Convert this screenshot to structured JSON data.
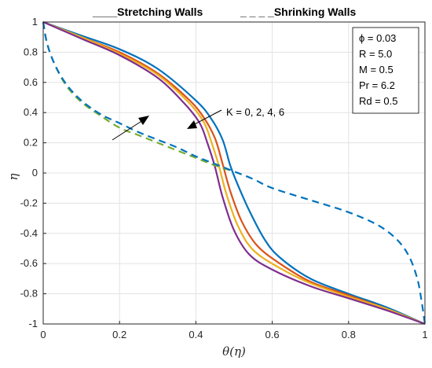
{
  "chart_data": {
    "type": "line",
    "xlabel": "θ(η)",
    "ylabel": "η",
    "xlim": [
      0,
      1
    ],
    "ylim": [
      -1,
      1
    ],
    "xticks": [
      "0",
      "0.2",
      "0.4",
      "0.6",
      "0.8",
      "1"
    ],
    "yticks": [
      "-1",
      "-0.8",
      "-0.6",
      "-0.4",
      "-0.2",
      "0",
      "0.2",
      "0.4",
      "0.6",
      "0.8",
      "1"
    ],
    "grid": true,
    "legend": {
      "placement": "top",
      "stretching_label": "____Stretching Walls",
      "shrinking_label": "_ _ _ _Shrinking Walls"
    },
    "parameters": {
      "placement": "top-right",
      "items": [
        "ϕ = 0.03",
        "R = 5.0",
        "M = 0.5",
        "Pr = 6.2",
        "Rd = 0.5"
      ]
    },
    "annotation": "K = 0, 2, 4, 6",
    "colors": [
      "#0072bd",
      "#d95319",
      "#edb120",
      "#7e2f8e",
      "#77ac30"
    ],
    "series": [
      {
        "style": "solid",
        "color": "#0072bd",
        "points": [
          [
            0,
            1
          ],
          [
            0.1,
            0.91
          ],
          [
            0.2,
            0.82
          ],
          [
            0.3,
            0.69
          ],
          [
            0.4,
            0.48
          ],
          [
            0.44,
            0.36
          ],
          [
            0.47,
            0.22
          ],
          [
            0.49,
            0.05
          ],
          [
            0.51,
            -0.08
          ],
          [
            0.54,
            -0.25
          ],
          [
            0.58,
            -0.44
          ],
          [
            0.62,
            -0.56
          ],
          [
            0.7,
            -0.7
          ],
          [
            0.8,
            -0.8
          ],
          [
            0.9,
            -0.89
          ],
          [
            1,
            -1
          ]
        ]
      },
      {
        "style": "solid",
        "color": "#d95319",
        "points": [
          [
            0,
            1
          ],
          [
            0.1,
            0.9
          ],
          [
            0.2,
            0.8
          ],
          [
            0.3,
            0.66
          ],
          [
            0.38,
            0.49
          ],
          [
            0.42,
            0.37
          ],
          [
            0.45,
            0.23
          ],
          [
            0.47,
            0.06
          ],
          [
            0.49,
            -0.12
          ],
          [
            0.52,
            -0.32
          ],
          [
            0.56,
            -0.48
          ],
          [
            0.62,
            -0.6
          ],
          [
            0.7,
            -0.72
          ],
          [
            0.8,
            -0.81
          ],
          [
            0.9,
            -0.9
          ],
          [
            1,
            -1
          ]
        ]
      },
      {
        "style": "solid",
        "color": "#edb120",
        "points": [
          [
            0,
            1
          ],
          [
            0.1,
            0.9
          ],
          [
            0.2,
            0.79
          ],
          [
            0.3,
            0.65
          ],
          [
            0.38,
            0.47
          ],
          [
            0.42,
            0.34
          ],
          [
            0.44,
            0.21
          ],
          [
            0.46,
            0.05
          ],
          [
            0.48,
            -0.14
          ],
          [
            0.51,
            -0.35
          ],
          [
            0.55,
            -0.51
          ],
          [
            0.62,
            -0.63
          ],
          [
            0.7,
            -0.73
          ],
          [
            0.8,
            -0.82
          ],
          [
            0.9,
            -0.9
          ],
          [
            1,
            -1
          ]
        ]
      },
      {
        "style": "solid",
        "color": "#7e2f8e",
        "points": [
          [
            0,
            1
          ],
          [
            0.1,
            0.89
          ],
          [
            0.2,
            0.78
          ],
          [
            0.3,
            0.63
          ],
          [
            0.37,
            0.46
          ],
          [
            0.41,
            0.33
          ],
          [
            0.43,
            0.2
          ],
          [
            0.45,
            0.04
          ],
          [
            0.47,
            -0.16
          ],
          [
            0.5,
            -0.38
          ],
          [
            0.54,
            -0.54
          ],
          [
            0.6,
            -0.64
          ],
          [
            0.7,
            -0.75
          ],
          [
            0.8,
            -0.83
          ],
          [
            0.9,
            -0.91
          ],
          [
            1,
            -1
          ]
        ]
      },
      {
        "style": "dashed",
        "color": "#77ac30",
        "points": [
          [
            0,
            1
          ],
          [
            0.01,
            0.86
          ],
          [
            0.03,
            0.72
          ],
          [
            0.06,
            0.58
          ],
          [
            0.1,
            0.47
          ],
          [
            0.15,
            0.38
          ],
          [
            0.2,
            0.3
          ],
          [
            0.25,
            0.25
          ],
          [
            0.3,
            0.2
          ],
          [
            0.35,
            0.15
          ],
          [
            0.4,
            0.1
          ],
          [
            0.45,
            0.05
          ],
          [
            0.5,
            0.01
          ]
        ]
      },
      {
        "style": "dashed",
        "color": "#0072bd",
        "points": [
          [
            0,
            1
          ],
          [
            0.01,
            0.86
          ],
          [
            0.03,
            0.72
          ],
          [
            0.06,
            0.59
          ],
          [
            0.1,
            0.48
          ],
          [
            0.15,
            0.39
          ],
          [
            0.2,
            0.33
          ],
          [
            0.25,
            0.27
          ],
          [
            0.3,
            0.22
          ],
          [
            0.35,
            0.17
          ],
          [
            0.4,
            0.11
          ],
          [
            0.45,
            0.06
          ],
          [
            0.5,
            0.01
          ],
          [
            0.55,
            -0.04
          ],
          [
            0.6,
            -0.1
          ],
          [
            0.7,
            -0.18
          ],
          [
            0.8,
            -0.26
          ],
          [
            0.88,
            -0.35
          ],
          [
            0.93,
            -0.45
          ],
          [
            0.96,
            -0.56
          ],
          [
            0.98,
            -0.7
          ],
          [
            0.99,
            -0.83
          ],
          [
            1,
            -1
          ]
        ]
      }
    ]
  }
}
